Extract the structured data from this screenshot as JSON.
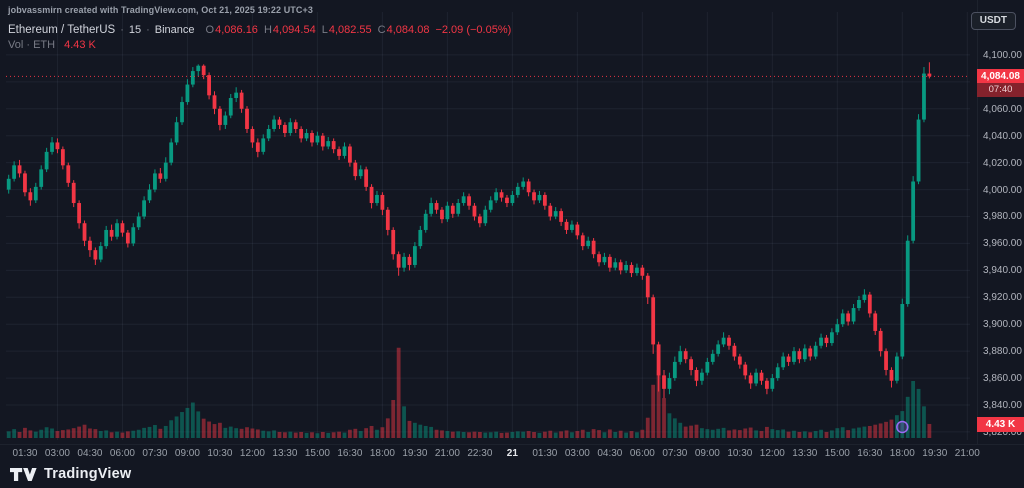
{
  "attribution": "jobvassmirn created with TradingView.com, Oct 21, 2025 19:22 UTC+3",
  "symbol": {
    "name": "Ethereum / TetherUS",
    "sep": "·",
    "interval": "15",
    "exchange": "Binance",
    "ohlc": {
      "o_label": "O",
      "o": "4,086.16",
      "h_label": "H",
      "h": "4,094.54",
      "l_label": "L",
      "l": "4,082.55",
      "c_label": "C",
      "c": "4,084.08",
      "change": "−2.09 (−0.05%)"
    },
    "volume_label": "Vol · ETH",
    "volume_value": "4.43 K"
  },
  "currency_badge": "USDT",
  "price_scale": {
    "current_price": "4,084.08",
    "countdown": "07:40",
    "current_volume": "4.43 K",
    "labels": [
      {
        "text": "4,100.00",
        "value": 4100
      },
      {
        "text": "4,060.00",
        "value": 4060
      },
      {
        "text": "4,040.00",
        "value": 4040
      },
      {
        "text": "4,020.00",
        "value": 4020
      },
      {
        "text": "4,000.00",
        "value": 4000
      },
      {
        "text": "3,980.00",
        "value": 3980
      },
      {
        "text": "3,960.00",
        "value": 3960
      },
      {
        "text": "3,940.00",
        "value": 3940
      },
      {
        "text": "3,920.00",
        "value": 3920
      },
      {
        "text": "3,900.00",
        "value": 3900
      },
      {
        "text": "3,880.00",
        "value": 3880
      },
      {
        "text": "3,860.00",
        "value": 3860
      },
      {
        "text": "3,840.00",
        "value": 3840
      },
      {
        "text": "3,820.00",
        "value": 3820
      }
    ]
  },
  "time_scale": {
    "labels": [
      "01:30",
      "03:00",
      "04:30",
      "06:00",
      "07:30",
      "09:00",
      "10:30",
      "12:00",
      "13:30",
      "15:00",
      "16:30",
      "18:00",
      "19:30",
      "21:00",
      "22:30",
      "21",
      "01:30",
      "03:00",
      "04:30",
      "06:00",
      "07:30",
      "09:00",
      "10:30",
      "12:00",
      "13:30",
      "15:00",
      "16:30",
      "18:00",
      "19:30",
      "21:00"
    ],
    "date_label_index": 15
  },
  "footer": {
    "brand": "TradingView"
  },
  "colors": {
    "bg": "#131722",
    "up": "#089981",
    "down": "#f23645",
    "grid": "rgba(163,177,205,0.08)",
    "axis_text": "#b2b5be",
    "price_line": "#f23645",
    "event_marker": "#9b6af5"
  },
  "chart_data": {
    "type": "candlestick+volume",
    "symbol": "ETHUSDT",
    "exchange": "Binance",
    "interval_minutes": 15,
    "start_time": "2025-10-20 00:45 UTC+3",
    "price_axis_shown": [
      3820,
      4100
    ],
    "grid_step": 20,
    "volume_unit": "K",
    "volume_scale_max_k": 30,
    "columns": [
      "open",
      "high",
      "low",
      "close",
      "volume_k"
    ],
    "current": {
      "open": 4086.16,
      "high": 4094.54,
      "low": 4082.55,
      "close": 4084.08,
      "change": -2.09,
      "change_pct": -0.05,
      "volume_k": 4.43,
      "countdown": "07:40"
    },
    "candles": [
      [
        4000,
        4011,
        3997,
        4008,
        2.1
      ],
      [
        4008,
        4021,
        4006,
        4018,
        2.8
      ],
      [
        4018,
        4022,
        4009,
        4012,
        1.9
      ],
      [
        4012,
        4014,
        3995,
        3998,
        3.2
      ],
      [
        3998,
        4001,
        3988,
        3992,
        2.4
      ],
      [
        3992,
        4005,
        3990,
        4002,
        2.0
      ],
      [
        4002,
        4018,
        4000,
        4015,
        2.6
      ],
      [
        4015,
        4031,
        4013,
        4028,
        3.4
      ],
      [
        4028,
        4039,
        4026,
        4035,
        3.0
      ],
      [
        4035,
        4038,
        4027,
        4030,
        2.2
      ],
      [
        4030,
        4032,
        4015,
        4018,
        2.5
      ],
      [
        4018,
        4020,
        4002,
        4005,
        2.7
      ],
      [
        4005,
        4007,
        3987,
        3990,
        3.1
      ],
      [
        3990,
        3992,
        3971,
        3975,
        3.6
      ],
      [
        3975,
        3977,
        3958,
        3962,
        4.2
      ],
      [
        3962,
        3965,
        3950,
        3955,
        3.0
      ],
      [
        3955,
        3957,
        3944,
        3948,
        2.8
      ],
      [
        3948,
        3961,
        3946,
        3958,
        2.2
      ],
      [
        3958,
        3973,
        3956,
        3970,
        2.4
      ],
      [
        3970,
        3974,
        3962,
        3965,
        1.8
      ],
      [
        3965,
        3978,
        3963,
        3975,
        2.0
      ],
      [
        3975,
        3977,
        3965,
        3968,
        1.7
      ],
      [
        3968,
        3970,
        3957,
        3960,
        2.1
      ],
      [
        3960,
        3975,
        3958,
        3972,
        2.3
      ],
      [
        3972,
        3983,
        3970,
        3980,
        2.6
      ],
      [
        3980,
        3995,
        3978,
        3992,
        3.2
      ],
      [
        3992,
        4004,
        3990,
        4000,
        3.5
      ],
      [
        4000,
        4015,
        3998,
        4012,
        4.1
      ],
      [
        4012,
        4016,
        4005,
        4008,
        2.9
      ],
      [
        4008,
        4024,
        4006,
        4020,
        3.8
      ],
      [
        4020,
        4038,
        4018,
        4035,
        5.6
      ],
      [
        4035,
        4054,
        4033,
        4050,
        6.8
      ],
      [
        4050,
        4069,
        4048,
        4065,
        8.2
      ],
      [
        4065,
        4082,
        4063,
        4078,
        9.5
      ],
      [
        4078,
        4091,
        4076,
        4088,
        11.2
      ],
      [
        4088,
        4093,
        4084,
        4092,
        8.4
      ],
      [
        4092,
        4093,
        4082,
        4085,
        6.1
      ],
      [
        4085,
        4087,
        4067,
        4070,
        5.2
      ],
      [
        4070,
        4073,
        4056,
        4060,
        4.4
      ],
      [
        4060,
        4062,
        4044,
        4048,
        4.8
      ],
      [
        4048,
        4058,
        4045,
        4055,
        3.2
      ],
      [
        4055,
        4071,
        4053,
        4068,
        3.6
      ],
      [
        4068,
        4076,
        4065,
        4072,
        3.1
      ],
      [
        4072,
        4074,
        4057,
        4060,
        2.9
      ],
      [
        4060,
        4062,
        4042,
        4045,
        3.4
      ],
      [
        4045,
        4047,
        4031,
        4035,
        3.0
      ],
      [
        4035,
        4038,
        4024,
        4028,
        2.7
      ],
      [
        4028,
        4041,
        4026,
        4038,
        2.3
      ],
      [
        4038,
        4048,
        4036,
        4045,
        2.1
      ],
      [
        4045,
        4055,
        4043,
        4052,
        2.4
      ],
      [
        4052,
        4054,
        4045,
        4048,
        1.9
      ],
      [
        4048,
        4050,
        4039,
        4042,
        1.8
      ],
      [
        4042,
        4053,
        4040,
        4050,
        2.0
      ],
      [
        4050,
        4052,
        4042,
        4045,
        1.7
      ],
      [
        4045,
        4047,
        4035,
        4038,
        1.9
      ],
      [
        4038,
        4045,
        4036,
        4042,
        1.6
      ],
      [
        4042,
        4044,
        4032,
        4035,
        1.8
      ],
      [
        4035,
        4043,
        4033,
        4040,
        1.5
      ],
      [
        4040,
        4042,
        4029,
        4032,
        1.9
      ],
      [
        4032,
        4039,
        4030,
        4036,
        1.6
      ],
      [
        4036,
        4038,
        4027,
        4030,
        1.8
      ],
      [
        4030,
        4032,
        4022,
        4025,
        2.0
      ],
      [
        4025,
        4035,
        4023,
        4032,
        1.7
      ],
      [
        4032,
        4034,
        4017,
        4020,
        2.6
      ],
      [
        4020,
        4022,
        4007,
        4010,
        2.9
      ],
      [
        4010,
        4018,
        4008,
        4015,
        2.2
      ],
      [
        4015,
        4017,
        3999,
        4002,
        3.1
      ],
      [
        4002,
        4004,
        3986,
        3990,
        3.8
      ],
      [
        3990,
        3999,
        3988,
        3996,
        2.6
      ],
      [
        3996,
        3998,
        3981,
        3985,
        3.4
      ],
      [
        3985,
        3987,
        3966,
        3970,
        6.2
      ],
      [
        3970,
        3972,
        3948,
        3952,
        12.0
      ],
      [
        3952,
        3954,
        3936,
        3942,
        28.5
      ],
      [
        3942,
        3953,
        3939,
        3950,
        10.0
      ],
      [
        3950,
        3952,
        3940,
        3944,
        5.4
      ],
      [
        3944,
        3961,
        3942,
        3958,
        4.8
      ],
      [
        3958,
        3973,
        3956,
        3970,
        4.2
      ],
      [
        3970,
        3985,
        3968,
        3982,
        3.8
      ],
      [
        3982,
        3994,
        3980,
        3990,
        3.5
      ],
      [
        3990,
        3992,
        3982,
        3985,
        2.6
      ],
      [
        3985,
        3987,
        3975,
        3978,
        2.4
      ],
      [
        3978,
        3991,
        3976,
        3988,
        2.2
      ],
      [
        3988,
        3990,
        3979,
        3982,
        2.0
      ],
      [
        3982,
        3993,
        3980,
        3990,
        2.1
      ],
      [
        3990,
        3998,
        3988,
        3995,
        1.9
      ],
      [
        3995,
        3997,
        3985,
        3988,
        1.8
      ],
      [
        3988,
        3990,
        3977,
        3980,
        2.0
      ],
      [
        3980,
        3982,
        3972,
        3975,
        1.9
      ],
      [
        3975,
        3988,
        3973,
        3985,
        1.7
      ],
      [
        3985,
        3995,
        3983,
        3992,
        1.8
      ],
      [
        3992,
        4001,
        3990,
        3998,
        2.0
      ],
      [
        3998,
        4000,
        3991,
        3994,
        1.6
      ],
      [
        3994,
        3996,
        3987,
        3990,
        1.7
      ],
      [
        3990,
        3999,
        3988,
        3996,
        1.9
      ],
      [
        3996,
        4005,
        3994,
        4002,
        2.1
      ],
      [
        4002,
        4009,
        4000,
        4006,
        2.0
      ],
      [
        4006,
        4008,
        3995,
        3998,
        2.2
      ],
      [
        3998,
        4000,
        3989,
        3992,
        1.9
      ],
      [
        3992,
        3999,
        3990,
        3996,
        1.6
      ],
      [
        3996,
        3998,
        3985,
        3988,
        2.0
      ],
      [
        3988,
        3990,
        3977,
        3980,
        2.3
      ],
      [
        3980,
        3987,
        3978,
        3984,
        1.7
      ],
      [
        3984,
        3986,
        3973,
        3976,
        2.1
      ],
      [
        3976,
        3978,
        3967,
        3970,
        2.4
      ],
      [
        3970,
        3977,
        3968,
        3974,
        1.8
      ],
      [
        3974,
        3976,
        3963,
        3966,
        2.2
      ],
      [
        3966,
        3968,
        3955,
        3958,
        2.6
      ],
      [
        3958,
        3965,
        3956,
        3962,
        1.9
      ],
      [
        3962,
        3964,
        3949,
        3952,
        2.8
      ],
      [
        3952,
        3954,
        3943,
        3946,
        2.5
      ],
      [
        3946,
        3953,
        3944,
        3950,
        1.8
      ],
      [
        3950,
        3952,
        3939,
        3942,
        2.7
      ],
      [
        3942,
        3949,
        3940,
        3946,
        1.9
      ],
      [
        3946,
        3948,
        3937,
        3940,
        2.3
      ],
      [
        3940,
        3947,
        3938,
        3944,
        1.7
      ],
      [
        3944,
        3946,
        3935,
        3938,
        2.2
      ],
      [
        3938,
        3945,
        3936,
        3942,
        1.8
      ],
      [
        3942,
        3944,
        3933,
        3936,
        2.6
      ],
      [
        3936,
        3938,
        3915,
        3920,
        6.4
      ],
      [
        3920,
        3922,
        3878,
        3885,
        16.8
      ],
      [
        3885,
        3887,
        3850,
        3862,
        21.4
      ],
      [
        3862,
        3866,
        3845,
        3852,
        12.6
      ],
      [
        3852,
        3864,
        3848,
        3860,
        7.8
      ],
      [
        3860,
        3876,
        3858,
        3872,
        6.2
      ],
      [
        3872,
        3884,
        3870,
        3880,
        4.8
      ],
      [
        3880,
        3882,
        3871,
        3874,
        3.6
      ],
      [
        3874,
        3876,
        3862,
        3866,
        3.9
      ],
      [
        3866,
        3868,
        3854,
        3858,
        4.2
      ],
      [
        3858,
        3867,
        3855,
        3864,
        3.1
      ],
      [
        3864,
        3875,
        3862,
        3872,
        2.8
      ],
      [
        3872,
        3881,
        3870,
        3878,
        2.6
      ],
      [
        3878,
        3888,
        3876,
        3885,
        2.9
      ],
      [
        3885,
        3894,
        3883,
        3890,
        3.2
      ],
      [
        3890,
        3892,
        3881,
        3884,
        2.4
      ],
      [
        3884,
        3886,
        3873,
        3876,
        2.7
      ],
      [
        3876,
        3878,
        3867,
        3870,
        2.5
      ],
      [
        3870,
        3872,
        3859,
        3862,
        3.0
      ],
      [
        3862,
        3864,
        3852,
        3856,
        3.3
      ],
      [
        3856,
        3867,
        3854,
        3864,
        2.4
      ],
      [
        3864,
        3866,
        3855,
        3858,
        2.2
      ],
      [
        3858,
        3860,
        3848,
        3852,
        3.5
      ],
      [
        3852,
        3863,
        3850,
        3860,
        2.8
      ],
      [
        3860,
        3871,
        3858,
        3868,
        2.5
      ],
      [
        3868,
        3879,
        3866,
        3876,
        2.7
      ],
      [
        3876,
        3878,
        3869,
        3872,
        2.0
      ],
      [
        3872,
        3883,
        3870,
        3880,
        2.3
      ],
      [
        3880,
        3882,
        3871,
        3874,
        1.9
      ],
      [
        3874,
        3885,
        3872,
        3882,
        2.1
      ],
      [
        3882,
        3884,
        3873,
        3876,
        1.8
      ],
      [
        3876,
        3887,
        3874,
        3884,
        2.2
      ],
      [
        3884,
        3893,
        3882,
        3890,
        2.6
      ],
      [
        3890,
        3892,
        3883,
        3886,
        1.9
      ],
      [
        3886,
        3897,
        3884,
        3894,
        2.4
      ],
      [
        3894,
        3904,
        3892,
        3900,
        3.1
      ],
      [
        3900,
        3911,
        3898,
        3908,
        3.4
      ],
      [
        3908,
        3910,
        3899,
        3902,
        2.5
      ],
      [
        3902,
        3915,
        3900,
        3912,
        3.0
      ],
      [
        3912,
        3921,
        3910,
        3918,
        3.3
      ],
      [
        3918,
        3926,
        3916,
        3922,
        3.6
      ],
      [
        3922,
        3924,
        3905,
        3908,
        3.8
      ],
      [
        3908,
        3910,
        3892,
        3895,
        4.2
      ],
      [
        3895,
        3897,
        3876,
        3880,
        4.6
      ],
      [
        3880,
        3882,
        3862,
        3866,
        5.1
      ],
      [
        3866,
        3868,
        3853,
        3858,
        5.8
      ],
      [
        3858,
        3879,
        3856,
        3876,
        7.2
      ],
      [
        3876,
        3919,
        3874,
        3915,
        8.5
      ],
      [
        3915,
        3966,
        3913,
        3962,
        13.0
      ],
      [
        3962,
        4010,
        3960,
        4006,
        18.0
      ],
      [
        4006,
        4056,
        4004,
        4052,
        15.5
      ],
      [
        4052,
        4091,
        4050,
        4086.16,
        10.0
      ],
      [
        4086.16,
        4094.54,
        4082.55,
        4084.08,
        4.43
      ]
    ]
  }
}
